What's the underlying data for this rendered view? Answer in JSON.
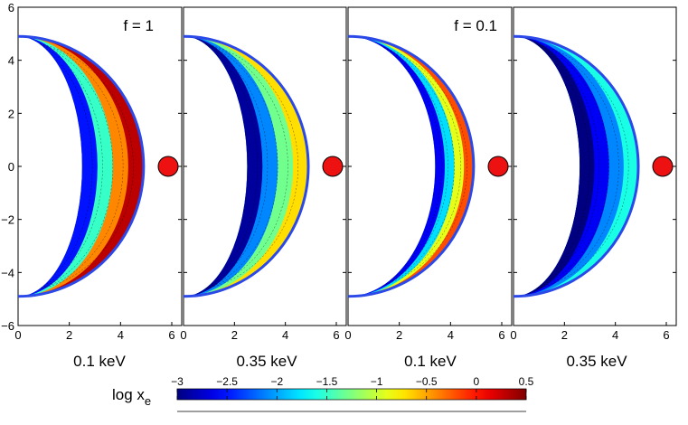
{
  "chart_data": {
    "type": "heatmap",
    "colorbar": {
      "label": "log x",
      "label_subscript": "e",
      "range": [
        -3,
        0.5
      ],
      "ticks": [
        "−3",
        "−2.5",
        "−2",
        "−1.5",
        "−1",
        "−0.5",
        "0",
        "0.5"
      ],
      "tick_values": [
        -3,
        -2.5,
        -2,
        -1.5,
        -1,
        -0.5,
        0,
        0.5
      ]
    },
    "x_ticks": [
      "0",
      "2",
      "4",
      "6"
    ],
    "x_tick_values": [
      0,
      2,
      4,
      6
    ],
    "y_ticks": [
      "−6",
      "−4",
      "−2",
      "0",
      "2",
      "4",
      "6"
    ],
    "y_tick_values": [
      -6,
      -4,
      -2,
      0,
      2,
      4,
      6
    ],
    "xlim": [
      0,
      6
    ],
    "ylim": [
      -6,
      6
    ],
    "shell_outer_radius": 4.9,
    "panels": [
      {
        "xlabel": "0.1 keV",
        "annotation": "f = 1",
        "series": [
          {
            "name": "shell",
            "values": [
              -2.5,
              -1.5,
              -0.4,
              0.3
            ]
          }
        ]
      },
      {
        "xlabel": "0.35 keV",
        "annotation": "",
        "series": [
          {
            "name": "shell",
            "values": [
              -2.9,
              -2.1,
              -1.3,
              -0.7
            ]
          }
        ]
      },
      {
        "xlabel": "0.1 keV",
        "annotation": "f = 0.1",
        "series": [
          {
            "name": "shell",
            "values": [
              -2.6,
              -1.8,
              -0.9,
              -0.2
            ]
          }
        ]
      },
      {
        "xlabel": "0.35 keV",
        "annotation": "",
        "series": [
          {
            "name": "shell",
            "values": [
              -3.0,
              -2.6,
              -2.1,
              -1.6
            ]
          }
        ]
      }
    ]
  },
  "colors": {
    "boundary": "#2b49e8",
    "star_fill": "#ee1111",
    "axis": "#000000"
  }
}
